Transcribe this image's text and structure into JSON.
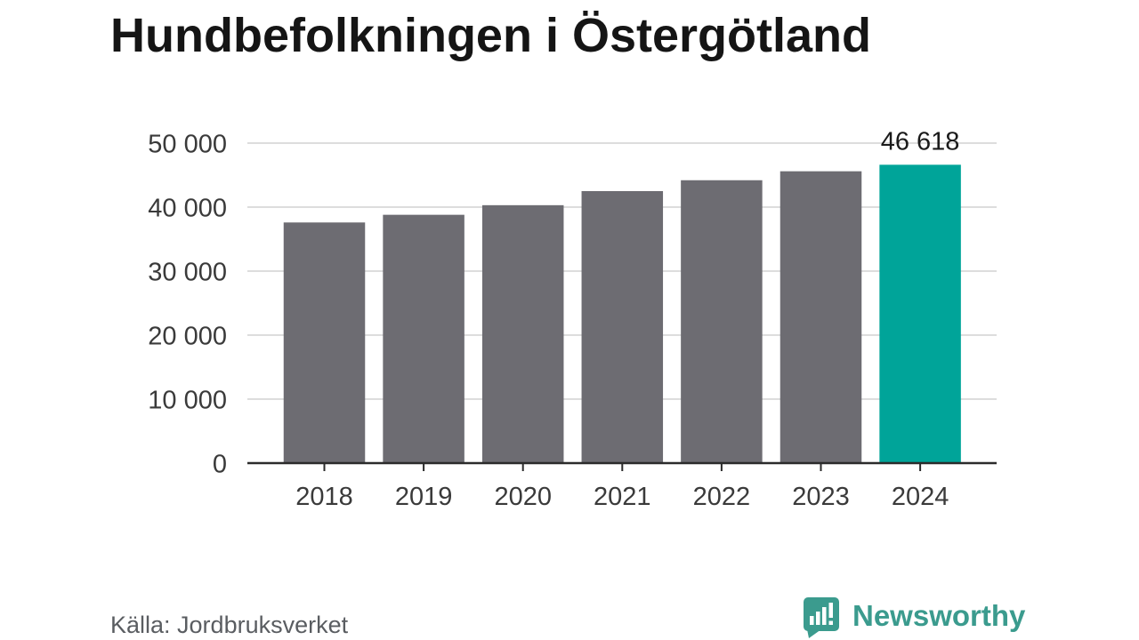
{
  "chart_data": {
    "type": "bar",
    "title": "Hundbefolkningen i Östergötland",
    "categories": [
      "2018",
      "2019",
      "2020",
      "2021",
      "2022",
      "2023",
      "2024"
    ],
    "values": [
      37600,
      38800,
      40300,
      42500,
      44200,
      45600,
      46618
    ],
    "ylim": [
      0,
      50000
    ],
    "y_ticks": [
      0,
      10000,
      20000,
      30000,
      40000,
      50000
    ],
    "y_tick_labels": [
      "0",
      "10 000",
      "20 000",
      "30 000",
      "40 000",
      "50 000"
    ],
    "data_labels": [
      {
        "index": 6,
        "value": 46618,
        "text": "46 618"
      }
    ],
    "highlight_index": 6,
    "grid": true,
    "colors": {
      "bar": "#6d6c72",
      "highlight": "#00a499",
      "grid": "#dddddd",
      "axis": "#2b2b2b",
      "tick_text": "#3a3a3a",
      "label_text": "#1a1a1a"
    }
  },
  "footer": {
    "source": "Källa: Jordbruksverket",
    "brand": "Newsworthy",
    "brand_icon": "newsworthy-logo-icon",
    "brand_color": "#3b9b8e"
  }
}
